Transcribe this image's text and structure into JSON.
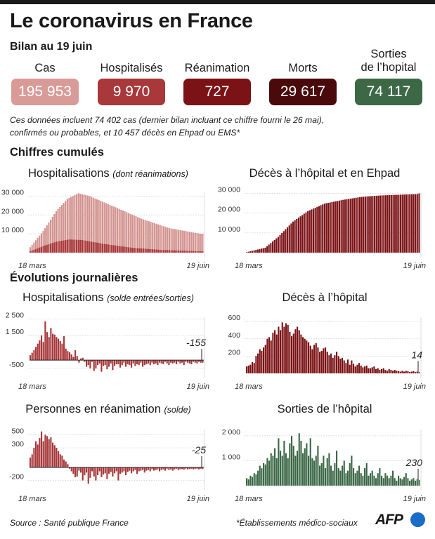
{
  "header": {
    "title": "Le coronavirus en France",
    "subtitle": "Bilan au 19 juin"
  },
  "stats": [
    {
      "label": "Cas",
      "value": "195 953",
      "color": "#d99b98"
    },
    {
      "label": "Hospitalisés",
      "value": "9 970",
      "color": "#a8383a"
    },
    {
      "label": "Réanimation",
      "value": "727",
      "color": "#7b1215"
    },
    {
      "label": "Morts",
      "value": "29 617",
      "color": "#4a0a0c"
    },
    {
      "label_line1": "Sorties",
      "label_line2": "de l’hopital",
      "value": "74 117",
      "color": "#3c6846"
    }
  ],
  "note_line1": "Ces données incluent 74 402 cas (dernier bilan incluant ce chiffre fourni le 26 mai),",
  "note_line2": "confirmés ou probables, et 10 457 décès en Ehpad ou EMS*",
  "sections": {
    "cumulative": "Chiffres cumulés",
    "daily": "Évolutions journalières"
  },
  "chart_titles": {
    "hosp_cum": "Hospitalisations",
    "hosp_cum_note": "(dont réanimations)",
    "deaths_cum": "Décès à l’hôpital et en Ehpad",
    "hosp_daily": "Hospitalisations",
    "hosp_daily_note": "(solde entrées/sorties)",
    "deaths_daily": "Décès à l’hôpital",
    "icu_daily": "Personnes en réanimation",
    "icu_daily_note": "(solde)",
    "exits_daily": "Sorties de l’hôpital"
  },
  "footer": {
    "source": "Source : Santé publique France",
    "footnote": "*Établissements médico-sociaux",
    "logo": "AFP"
  },
  "colors": {
    "light": "#d3938f",
    "mid": "#a8383a",
    "dark": "#7b1215",
    "green": "#3c6846"
  },
  "chart_data": [
    {
      "id": "hosp_cum",
      "type": "bar",
      "title": "Hospitalisations (dont réanimations)",
      "date_range": [
        "18 mars",
        "19 juin"
      ],
      "ylim": [
        0,
        32000
      ],
      "yticks": [
        10000,
        20000,
        30000
      ],
      "ytick_labels": [
        "10 000",
        "20 000",
        "30 000"
      ],
      "xtick_labels": [
        "18 mars",
        "19 juin"
      ],
      "series": [
        {
          "name": "Hospitalisations",
          "anchors": [
            [
              0,
              2900
            ],
            [
              7,
              11500
            ],
            [
              14,
              22000
            ],
            [
              20,
              28500
            ],
            [
              26,
              31500
            ],
            [
              32,
              30000
            ],
            [
              45,
              24500
            ],
            [
              60,
              18000
            ],
            [
              75,
              13000
            ],
            [
              92,
              9970
            ]
          ]
        },
        {
          "name": "réanimations",
          "anchors": [
            [
              0,
              750
            ],
            [
              7,
              3500
            ],
            [
              14,
              5800
            ],
            [
              21,
              7000
            ],
            [
              28,
              6700
            ],
            [
              40,
              4600
            ],
            [
              55,
              2600
            ],
            [
              70,
              1500
            ],
            [
              92,
              727
            ]
          ]
        }
      ]
    },
    {
      "id": "deaths_cum",
      "type": "bar",
      "title": "Décès à l’hôpital et en Ehpad",
      "date_range": [
        "18 mars",
        "19 juin"
      ],
      "ylim": [
        0,
        30500
      ],
      "yticks": [
        10000,
        20000,
        30000
      ],
      "ytick_labels": [
        "10 000",
        "20 000",
        "30 000"
      ],
      "xtick_labels": [
        "18 mars",
        "19 juin"
      ],
      "series": [
        {
          "name": "Décès",
          "anchors": [
            [
              0,
              260
            ],
            [
              10,
              2500
            ],
            [
              17,
              8000
            ],
            [
              25,
              15700
            ],
            [
              33,
              21000
            ],
            [
              42,
              24800
            ],
            [
              52,
              26700
            ],
            [
              62,
              28200
            ],
            [
              72,
              28900
            ],
            [
              92,
              29617
            ]
          ]
        }
      ]
    },
    {
      "id": "hosp_daily",
      "type": "bar",
      "title": "Hospitalisations (solde entrées/sorties)",
      "ylim": [
        -800,
        2600
      ],
      "yticks": [
        -500,
        1500,
        2500
      ],
      "ytick_labels": [
        "-500",
        "1 500",
        "2 500"
      ],
      "xtick_labels": [
        "18 mars",
        "19 juin"
      ],
      "last_value_label": "-155",
      "values": [
        300,
        450,
        600,
        800,
        1000,
        1200,
        1500,
        1100,
        2350,
        1700,
        1400,
        1950,
        1600,
        1550,
        1400,
        1300,
        1150,
        1000,
        1450,
        700,
        550,
        480,
        350,
        200,
        600,
        250,
        -150,
        100,
        150,
        -100,
        -400,
        -300,
        -500,
        -100,
        -650,
        -500,
        -300,
        -200,
        -700,
        -350,
        -300,
        -550,
        -400,
        -200,
        -600,
        -350,
        -250,
        -250,
        -450,
        -300,
        -150,
        -400,
        -250,
        -300,
        -450,
        -200,
        -350,
        -250,
        -300,
        -150,
        -400,
        -300,
        -250,
        -200,
        -300,
        -150,
        -250,
        -200,
        -300,
        -150,
        -200,
        -250,
        -100,
        -200,
        -300,
        -150,
        -200,
        -150,
        -250,
        -100,
        -200,
        -150,
        -300,
        -100,
        -150,
        -200,
        -250,
        -100,
        -150,
        -200,
        -100,
        -150,
        -155
      ]
    },
    {
      "id": "deaths_daily",
      "type": "bar",
      "title": "Décès à l’hôpital",
      "ylim": [
        0,
        650
      ],
      "yticks": [
        200,
        400,
        600
      ],
      "ytick_labels": [
        "200",
        "400",
        "600"
      ],
      "xtick_labels": [
        "18 mars",
        "19 juin"
      ],
      "last_value_label": "14",
      "values": [
        80,
        90,
        100,
        130,
        120,
        200,
        230,
        280,
        260,
        300,
        330,
        400,
        420,
        380,
        470,
        500,
        450,
        540,
        500,
        590,
        540,
        580,
        560,
        480,
        430,
        460,
        510,
        540,
        500,
        450,
        420,
        400,
        380,
        360,
        320,
        280,
        330,
        350,
        300,
        250,
        260,
        290,
        300,
        250,
        210,
        230,
        180,
        210,
        250,
        200,
        170,
        180,
        150,
        120,
        160,
        100,
        150,
        110,
        80,
        100,
        120,
        90,
        70,
        80,
        90,
        60,
        60,
        70,
        80,
        50,
        60,
        40,
        50,
        60,
        40,
        30,
        50,
        40,
        30,
        40,
        30,
        25,
        20,
        30,
        20,
        30,
        25,
        15,
        20,
        25,
        15,
        20,
        14
      ]
    },
    {
      "id": "icu_daily",
      "type": "bar",
      "title": "Personnes en réanimation (solde)",
      "ylim": [
        -280,
        580
      ],
      "yticks": [
        -200,
        300,
        500
      ],
      "ytick_labels": [
        "-200",
        "300",
        "500"
      ],
      "xtick_labels": [
        "18 mars",
        "19 juin"
      ],
      "last_value_label": "-25",
      "values": [
        150,
        200,
        300,
        400,
        350,
        450,
        550,
        400,
        500,
        480,
        430,
        460,
        380,
        340,
        300,
        250,
        200,
        180,
        120,
        90,
        50,
        -20,
        -60,
        -100,
        -150,
        -140,
        -50,
        -80,
        -200,
        -120,
        -80,
        -250,
        -160,
        -60,
        -140,
        -200,
        -120,
        -60,
        -150,
        -110,
        -90,
        -180,
        -100,
        -70,
        -140,
        -90,
        -60,
        -200,
        -100,
        -80,
        -60,
        -120,
        -70,
        -50,
        -90,
        -60,
        -40,
        -100,
        -60,
        -50,
        -40,
        -80,
        -50,
        -40,
        -60,
        -30,
        -50,
        -40,
        -30,
        -60,
        -40,
        -30,
        -50,
        -20,
        -40,
        -30,
        -50,
        -30,
        -20,
        -40,
        -30,
        -25,
        -35,
        -20,
        -30,
        -25,
        -20,
        -30,
        -25,
        -20,
        -30,
        -20,
        -25
      ]
    },
    {
      "id": "exits_daily",
      "type": "bar",
      "title": "Sorties de l’hôpital",
      "ylim": [
        0,
        2250
      ],
      "yticks": [
        1000,
        2000
      ],
      "ytick_labels": [
        "1 000",
        "2 000"
      ],
      "xtick_labels": [
        "18 mars",
        "19 juin"
      ],
      "last_value_label": "230",
      "values": [
        300,
        250,
        400,
        350,
        500,
        450,
        600,
        800,
        700,
        900,
        850,
        1100,
        1000,
        1300,
        1200,
        1500,
        1100,
        1900,
        1400,
        1200,
        1800,
        1300,
        1100,
        1700,
        2000,
        1600,
        1200,
        1400,
        2100,
        1800,
        1300,
        1500,
        1700,
        1200,
        1900,
        1100,
        1000,
        1200,
        1600,
        800,
        900,
        1200,
        700,
        1100,
        1300,
        800,
        600,
        900,
        1400,
        700,
        600,
        800,
        1000,
        500,
        600,
        900,
        1200,
        700,
        500,
        600,
        800,
        500,
        400,
        700,
        900,
        400,
        500,
        600,
        400,
        300,
        500,
        700,
        400,
        300,
        500,
        400,
        300,
        400,
        600,
        300,
        200,
        400,
        300,
        250,
        350,
        500,
        300,
        200,
        250,
        300,
        200,
        250,
        230
      ]
    }
  ]
}
